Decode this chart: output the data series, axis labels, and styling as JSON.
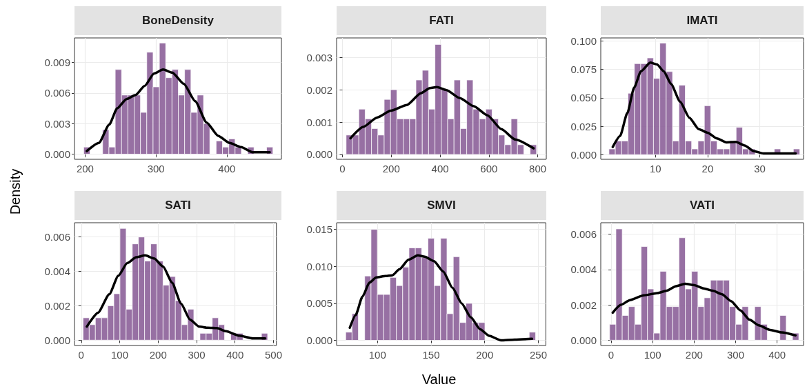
{
  "chart_data": [
    {
      "type": "histogram",
      "title": "BoneDensity",
      "grid": true,
      "xlim": [
        185,
        477
      ],
      "xticks": [
        200,
        300,
        400
      ],
      "ylim": [
        -0.0005,
        0.0114
      ],
      "yticks": [
        {
          "value": 0,
          "label": "0.000"
        },
        0.003,
        0.006,
        0.009
      ],
      "series": [
        {
          "type": "histogram",
          "color": "#8c6199",
          "bins": [
            198,
            206.9,
            215.8,
            224.7,
            233.6,
            242.5,
            251.4,
            260.3,
            269.2,
            278.1,
            287,
            295.9,
            304.8,
            313.7,
            322.6,
            331.5,
            340.4,
            349.3,
            358.2,
            367.1,
            376,
            384.9,
            393.8,
            402.7,
            411.6,
            420.5,
            429.4,
            438.3,
            447.2,
            456.1,
            465
          ],
          "values": [
            0.0007,
            0,
            0,
            0.0024,
            0.0007,
            0.0083,
            0.0058,
            0.0058,
            0.0058,
            0.0041,
            0.01,
            0.0066,
            0.0109,
            0.0075,
            0.0083,
            0.0058,
            0.0083,
            0.0041,
            0.0058,
            0.003,
            0,
            0.0013,
            0.0007,
            0.0015,
            0.0007,
            0,
            0.0007,
            0,
            0,
            0.0007
          ]
        },
        {
          "type": "line",
          "color": "#000000",
          "x": [
            202.3,
            219.4,
            234,
            245.3,
            258.3,
            271.2,
            284.1,
            297.1,
            310,
            323,
            339.2,
            355.3,
            371.5,
            387.7,
            403.9,
            420,
            436.2,
            460.5
          ],
          "values": [
            0.0003,
            0.0011,
            0.0029,
            0.0045,
            0.0054,
            0.0058,
            0.0067,
            0.0079,
            0.0083,
            0.008,
            0.0069,
            0.0052,
            0.0031,
            0.0018,
            0.0011,
            0.0007,
            0.0002,
            0.0002
          ]
        }
      ]
    },
    {
      "type": "histogram",
      "title": "FATI",
      "grid": true,
      "xlim": [
        -24,
        835
      ],
      "xticks": [
        0,
        200,
        400,
        600,
        800
      ],
      "ylim": [
        -0.00015,
        0.0036
      ],
      "yticks": [
        {
          "value": 0,
          "label": "0.000"
        },
        0.001,
        0.002,
        0.003
      ],
      "series": [
        {
          "type": "histogram",
          "color": "#8c6199",
          "bins": [
            15,
            41,
            67,
            93,
            119,
            145,
            171,
            197,
            223,
            249,
            275,
            301,
            327,
            353,
            379,
            405,
            431,
            457,
            483,
            509,
            535,
            561,
            587,
            613,
            639,
            665,
            691,
            717,
            743,
            769,
            795
          ],
          "values": [
            0.0006,
            0.0006,
            0.0014,
            0.0011,
            0.0008,
            0.0006,
            0.0017,
            0.002,
            0.0011,
            0.0011,
            0.0011,
            0.0023,
            0.0026,
            0.0014,
            0.0034,
            0.002,
            0.0011,
            0.0023,
            0.0008,
            0.0023,
            0.0014,
            0.0011,
            0.0014,
            0.0011,
            0.0006,
            0.0003,
            0.0011,
            0.0003,
            0,
            0.0003
          ]
        },
        {
          "type": "line",
          "color": "#000000",
          "x": [
            33,
            85,
            142,
            198,
            264,
            321,
            358,
            387,
            425,
            481,
            538,
            594,
            651,
            708,
            783
          ],
          "values": [
            0.0005,
            0.00085,
            0.00114,
            0.00135,
            0.00153,
            0.00189,
            0.00205,
            0.00208,
            0.00199,
            0.00174,
            0.00149,
            0.00121,
            0.00078,
            0.00046,
            0.00019
          ]
        }
      ]
    },
    {
      "type": "histogram",
      "title": "IMATI",
      "grid": true,
      "xlim": [
        -0.5,
        38.4
      ],
      "xticks": [
        10,
        20,
        30
      ],
      "ylim": [
        -0.0041,
        0.1026
      ],
      "yticks": [
        {
          "value": 0,
          "label": "0.000"
        },
        0.025,
        {
          "value": 0.05,
          "label": "0.050"
        },
        0.075,
        {
          "value": 0.1,
          "label": "0.100"
        }
      ],
      "series": [
        {
          "type": "histogram",
          "color": "#8c6199",
          "bins": [
            1.07,
            2.29,
            3.51,
            4.73,
            5.95,
            7.17,
            8.39,
            9.61,
            10.83,
            12.05,
            13.27,
            14.49,
            15.71,
            16.93,
            18.15,
            19.37,
            20.59,
            21.81,
            23.03,
            24.25,
            25.47,
            26.69,
            27.91,
            29.13,
            30.35,
            31.57,
            32.79,
            34.01,
            35.23,
            36.45,
            37.67
          ],
          "values": [
            0.005,
            0.012,
            0.012,
            0.054,
            0.08,
            0.08,
            0.085,
            0.067,
            0.098,
            0.073,
            0.012,
            0.061,
            0.012,
            0.005,
            0.012,
            0.043,
            0.012,
            0.005,
            0.005,
            0.012,
            0.024,
            0.005,
            0.005,
            0,
            0,
            0,
            0.005,
            0,
            0,
            0.005
          ]
        },
        {
          "type": "line",
          "color": "#000000",
          "x": [
            1.8,
            3.2,
            4.6,
            5.9,
            7.2,
            9.0,
            10.3,
            11.6,
            13.0,
            14.7,
            16.5,
            18.3,
            20.0,
            21.8,
            23.6,
            25.4,
            27.1,
            28.9,
            30.7,
            36.9
          ],
          "values": [
            0.0067,
            0.0163,
            0.0366,
            0.0589,
            0.0732,
            0.0809,
            0.0793,
            0.0732,
            0.062,
            0.0467,
            0.0325,
            0.0224,
            0.0193,
            0.0142,
            0.0108,
            0.0112,
            0.0081,
            0.003,
            0.001,
            0.001
          ]
        }
      ]
    },
    {
      "type": "histogram",
      "title": "SATI",
      "ylabel": "Density",
      "grid": true,
      "xlim": [
        -17.5,
        507.6
      ],
      "xticks": [
        0,
        100,
        200,
        300,
        400,
        500
      ],
      "ylim": [
        -0.00031,
        0.00683
      ],
      "yticks": [
        {
          "value": 0,
          "label": "0.000"
        },
        0.002,
        0.004,
        0.006
      ],
      "series": [
        {
          "type": "histogram",
          "color": "#8c6199",
          "bins": [
            4.8,
            20.8,
            36.8,
            52.8,
            68.8,
            84.8,
            100.8,
            116.8,
            132.8,
            148.8,
            164.8,
            180.8,
            196.8,
            212.8,
            228.8,
            244.8,
            260.8,
            276.8,
            292.8,
            308.8,
            324.8,
            340.8,
            356.8,
            372.8,
            388.8,
            404.8,
            420.8,
            436.8,
            452.8,
            468.8,
            484.8
          ],
          "values": [
            0.0013,
            0.0009,
            0.0013,
            0.0013,
            0.002,
            0.0027,
            0.0065,
            0.0018,
            0.0056,
            0.006,
            0.0046,
            0.0056,
            0.0046,
            0.0032,
            0.0037,
            0.0023,
            0.0009,
            0.0018,
            0,
            0.0004,
            0.0004,
            0.0013,
            0.0009,
            0,
            0.0004,
            0.0004,
            0,
            0,
            0,
            0.0004
          ]
        },
        {
          "type": "line",
          "color": "#000000",
          "x": [
            14.6,
            43.8,
            73,
            96.3,
            119.6,
            142.9,
            166.3,
            189.6,
            213,
            236.3,
            259.6,
            282.9,
            306.3,
            329.6,
            353,
            376.3,
            411.4,
            446.4,
            478.4
          ],
          "values": [
            0.00079,
            0.0016,
            0.00267,
            0.00374,
            0.00448,
            0.00482,
            0.00493,
            0.00475,
            0.00428,
            0.00334,
            0.00213,
            0.00119,
            0.00079,
            0.00072,
            0.0007,
            0.00052,
            0.00026,
            0.0001,
            0.0001
          ]
        }
      ]
    },
    {
      "type": "histogram",
      "title": "SMVI",
      "xlabel": "Value",
      "grid": true,
      "xlim": [
        61.9,
        257
      ],
      "xticks": [
        100,
        150,
        200,
        250
      ],
      "ylim": [
        -0.0007,
        0.0159
      ],
      "yticks": [
        {
          "value": 0,
          "label": "0.000"
        },
        0.005,
        {
          "value": 0.01,
          "label": "0.010"
        },
        0.015
      ],
      "series": [
        {
          "type": "histogram",
          "color": "#8c6199",
          "bins": [
            70.4,
            76.3,
            82.2,
            88.1,
            94,
            99.9,
            105.8,
            111.7,
            117.6,
            123.5,
            129.4,
            135.3,
            141.2,
            147.1,
            153,
            158.9,
            164.8,
            170.7,
            176.6,
            182.5,
            188.4,
            194.3,
            200.2,
            206.1,
            212,
            217.9,
            223.8,
            229.7,
            235.6,
            241.5,
            247.4
          ],
          "values": [
            0.0011,
            0.0036,
            0,
            0.0087,
            0.015,
            0.0062,
            0.0062,
            0.0085,
            0.0074,
            0.0099,
            0.0125,
            0.0125,
            0.0112,
            0.0138,
            0.0074,
            0.0138,
            0.0036,
            0.0113,
            0.0024,
            0.005,
            0.0024,
            0.0024,
            0,
            0,
            0,
            0,
            0,
            0,
            0,
            0.0011
          ]
        },
        {
          "type": "line",
          "color": "#000000",
          "x": [
            74.2,
            79.6,
            86.0,
            92.5,
            98.9,
            107.5,
            113.9,
            120.4,
            129,
            137.6,
            144.1,
            152.7,
            161.3,
            169.9,
            178.5,
            187.1,
            195.7,
            204.3,
            215.1,
            228,
            244.1
          ],
          "values": [
            0.0017,
            0.0034,
            0.0059,
            0.0078,
            0.0085,
            0.0087,
            0.0088,
            0.0096,
            0.0109,
            0.0115,
            0.0113,
            0.0107,
            0.0093,
            0.0071,
            0.005,
            0.0031,
            0.0015,
            0.0006,
            0,
            0.0001,
            0.0002
          ]
        }
      ]
    },
    {
      "type": "histogram",
      "title": "VATI",
      "grid": true,
      "xlim": [
        -25,
        463.7
      ],
      "xticks": [
        0,
        100,
        200,
        300,
        400
      ],
      "ylim": [
        -0.0003,
        0.00665
      ],
      "yticks": [
        {
          "value": 0,
          "label": "0.000"
        },
        0.002,
        0.004,
        0.006
      ],
      "series": [
        {
          "type": "histogram",
          "color": "#8c6199",
          "bins": [
            -3.7,
            11.5,
            26.7,
            41.9,
            57.1,
            72.3,
            87.5,
            102.7,
            117.9,
            133.1,
            148.3,
            163.5,
            178.7,
            193.9,
            209.1,
            224.3,
            239.5,
            254.7,
            269.9,
            285.1,
            300.3,
            315.5,
            330.7,
            345.9,
            361.1,
            376.3,
            391.5,
            406.7,
            421.9,
            437.1,
            452.3
          ],
          "values": [
            0.0009,
            0.0063,
            0.0014,
            0.0019,
            0.0009,
            0.0053,
            0.0029,
            0.0004,
            0.0039,
            0.0019,
            0.0019,
            0.0058,
            0.0029,
            0.0039,
            0.0019,
            0.0024,
            0.0034,
            0.0034,
            0.0034,
            0.0019,
            0.0009,
            0.0019,
            0,
            0.0019,
            0.0009,
            0,
            0,
            0.0014,
            0,
            0.0004
          ]
        },
        {
          "type": "line",
          "color": "#000000",
          "x": [
            3.9,
            23.3,
            45.4,
            78.7,
            111.9,
            134.1,
            156.2,
            178.4,
            200.6,
            222.7,
            244.9,
            267,
            289.2,
            311.4,
            333.5,
            355.7,
            383.4,
            411.1,
            444.3
          ],
          "values": [
            0.00156,
            0.002,
            0.00227,
            0.00254,
            0.00267,
            0.0028,
            0.00306,
            0.00319,
            0.00312,
            0.00293,
            0.0028,
            0.0026,
            0.00221,
            0.00169,
            0.00116,
            0.00084,
            0.00058,
            0.00044,
            0.00027
          ]
        }
      ]
    }
  ]
}
